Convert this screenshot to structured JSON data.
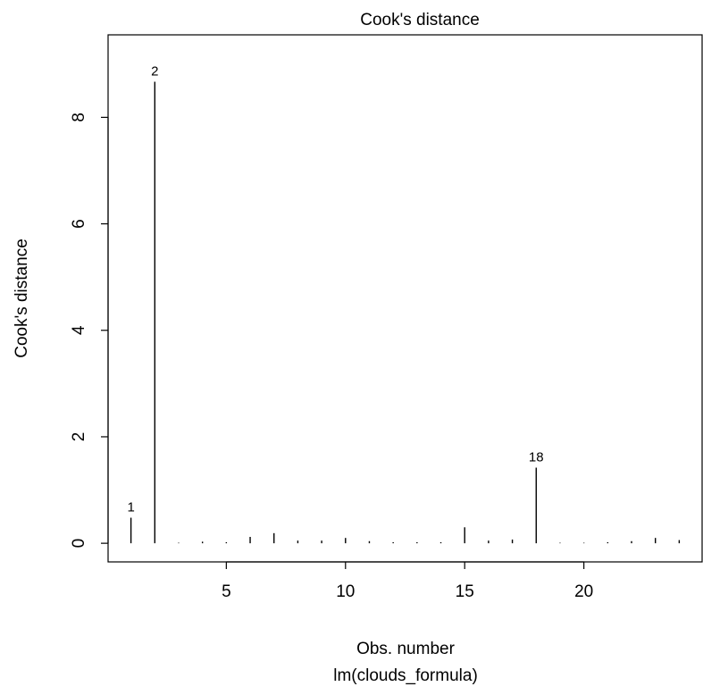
{
  "chart_data": {
    "type": "bar",
    "style": "vertical lines (R type='h')",
    "title": "Cook's distance",
    "xlabel": "Obs. number",
    "subtitle": "lm(clouds_formula)",
    "ylabel": "Cook's distance",
    "xlim": [
      0.04,
      24.96
    ],
    "ylim": [
      -0.35,
      9.55
    ],
    "x_ticks": [
      5,
      10,
      15,
      20
    ],
    "y_ticks": [
      0,
      2,
      4,
      6,
      8
    ],
    "x": [
      1,
      2,
      3,
      4,
      5,
      6,
      7,
      8,
      9,
      10,
      11,
      12,
      13,
      14,
      15,
      16,
      17,
      18,
      19,
      20,
      21,
      22,
      23,
      24
    ],
    "values": [
      0.48,
      8.67,
      0.01,
      0.03,
      0.02,
      0.12,
      0.19,
      0.05,
      0.05,
      0.1,
      0.04,
      0.02,
      0.02,
      0.02,
      0.3,
      0.05,
      0.07,
      1.42,
      0.01,
      0.01,
      0.02,
      0.04,
      0.1,
      0.06
    ],
    "point_labels": [
      {
        "x": 1,
        "text": "1"
      },
      {
        "x": 2,
        "text": "2"
      },
      {
        "x": 18,
        "text": "18"
      }
    ],
    "grid": false,
    "color": "#000000"
  }
}
